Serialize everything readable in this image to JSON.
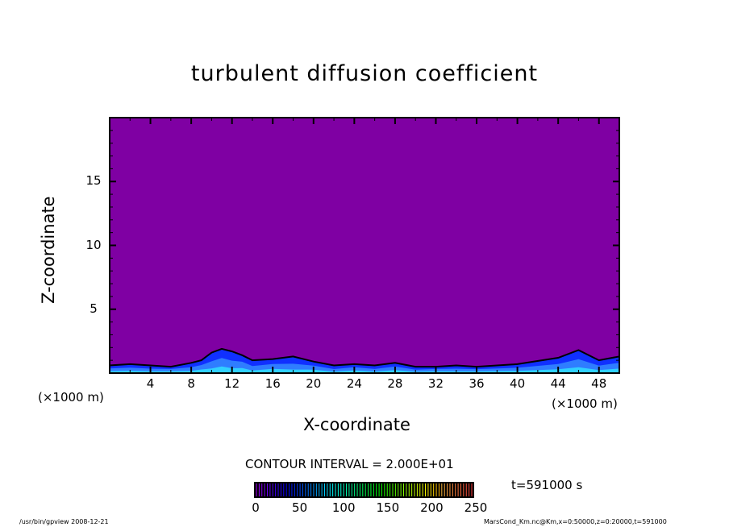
{
  "chart_data": {
    "type": "heatmap",
    "title": "turbulent diffusion coefficient",
    "xlabel": "X-coordinate",
    "ylabel": "Z-coordinate",
    "x_unit": "(×1000 m)",
    "y_unit": "(×1000 m)",
    "xlim": [
      0,
      50
    ],
    "ylim": [
      0,
      20
    ],
    "x_ticks": [
      4,
      8,
      12,
      16,
      20,
      24,
      28,
      32,
      36,
      40,
      44,
      48
    ],
    "y_ticks": [
      5,
      10,
      15
    ],
    "background_value_color": "#7f00a3",
    "surface_layer": {
      "x": [
        0,
        2,
        4,
        6,
        8,
        9,
        10,
        11,
        12,
        13,
        14,
        16,
        18,
        20,
        22,
        24,
        26,
        28,
        30,
        32,
        34,
        36,
        40,
        44,
        46,
        48,
        50
      ],
      "top_z": [
        0.6,
        0.7,
        0.6,
        0.5,
        0.8,
        1.0,
        1.6,
        1.9,
        1.7,
        1.4,
        1.0,
        1.1,
        1.3,
        0.9,
        0.6,
        0.7,
        0.6,
        0.8,
        0.5,
        0.5,
        0.6,
        0.5,
        0.7,
        1.2,
        1.8,
        1.0,
        1.3
      ],
      "colors": [
        "#1030ff",
        "#2f7dff",
        "#30d0ff"
      ]
    },
    "contour_interval": "CONTOUR INTERVAL = 2.000E+01",
    "colorbar": {
      "min": 0,
      "max": 250,
      "tick_labels": [
        "0",
        "50",
        "100",
        "150",
        "200",
        "250"
      ]
    }
  },
  "time_label": "t=591000 s",
  "footer_left": "/usr/bin/gpview   2008-12-21",
  "footer_right": "MarsCond_Km.nc@Km,x=0:50000,z=0:20000,t=591000"
}
